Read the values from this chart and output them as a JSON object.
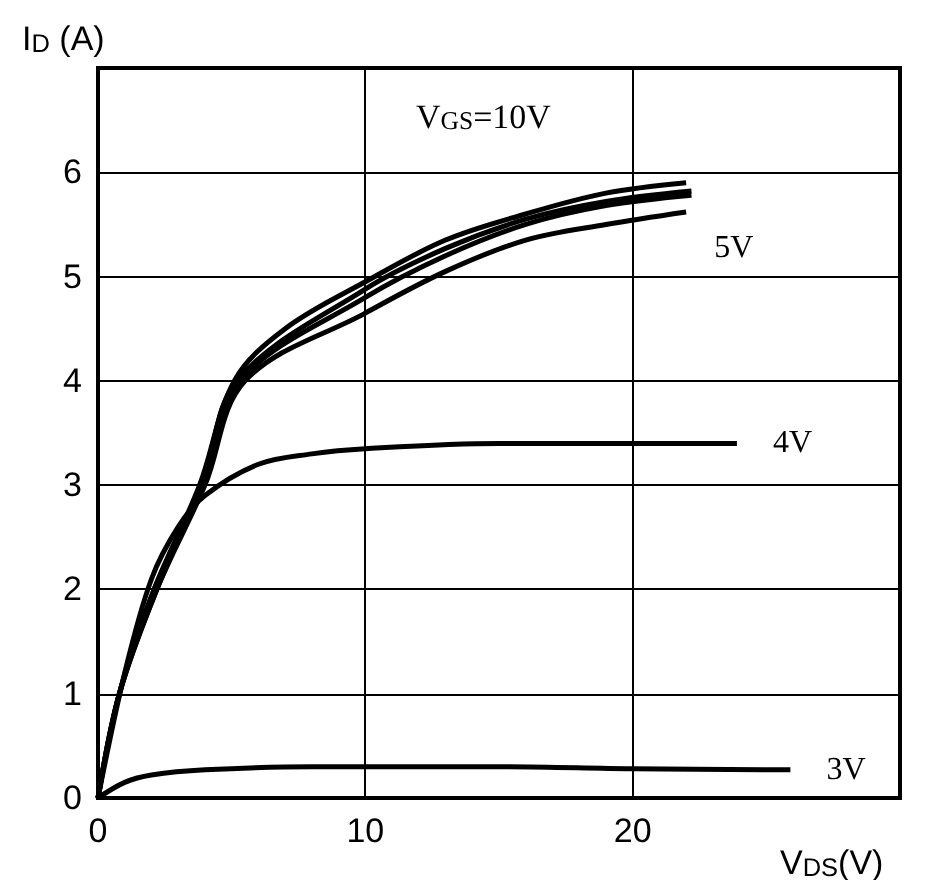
{
  "chart_data": {
    "type": "line",
    "xlabel": "V$_{DS}$(V)",
    "ylabel": "I$_{D}$ (A)",
    "annotations": [
      "V$_{GS}$=10V"
    ],
    "xlim": [
      0,
      30
    ],
    "xticks": [
      0,
      10,
      20
    ],
    "ylim": [
      0,
      7
    ],
    "yticks": [
      0,
      1,
      2,
      3,
      4,
      5,
      6
    ],
    "grid": true,
    "legend": false,
    "series": [
      {
        "color": "#000000",
        "x": [
          0,
          0.8,
          2.1,
          3.8,
          5.1,
          7,
          10,
          13,
          16,
          19,
          22
        ],
        "values": [
          0,
          1,
          2,
          3,
          4,
          4.5,
          4.95,
          5.35,
          5.6,
          5.8,
          5.9
        ]
      },
      {
        "color": "#000000",
        "x": [
          0,
          0.8,
          2.1,
          3.9,
          5.2,
          10,
          13,
          16,
          19,
          22.2
        ],
        "values": [
          0,
          1,
          2,
          3,
          4,
          4.88,
          5.27,
          5.55,
          5.72,
          5.82
        ]
      },
      {
        "color": "#000000",
        "x": [
          0,
          0.8,
          2.2,
          3.9,
          5.3,
          10,
          13,
          16,
          19,
          22.2
        ],
        "values": [
          0,
          1,
          2,
          3,
          4,
          4.8,
          5.2,
          5.5,
          5.68,
          5.78
        ]
      },
      {
        "name": "5V",
        "color": "#000000",
        "x": [
          0,
          0.8,
          2.2,
          4,
          5.5,
          10,
          13,
          16,
          19,
          22
        ],
        "values": [
          0,
          1,
          2,
          3,
          4,
          4.65,
          5.05,
          5.35,
          5.5,
          5.62
        ]
      },
      {
        "name": "4V",
        "color": "#000000",
        "x": [
          0,
          1,
          2,
          3,
          4,
          6,
          8,
          10,
          15,
          23.9
        ],
        "values": [
          0,
          1.2,
          2.1,
          2.6,
          2.9,
          3.2,
          3.3,
          3.35,
          3.4,
          3.4
        ]
      },
      {
        "name": "3V",
        "color": "#000000",
        "x": [
          0,
          1,
          2,
          4,
          8,
          10,
          15,
          20,
          25.9
        ],
        "values": [
          0,
          0.15,
          0.22,
          0.27,
          0.3,
          0.3,
          0.3,
          0.28,
          0.27
        ]
      }
    ]
  }
}
